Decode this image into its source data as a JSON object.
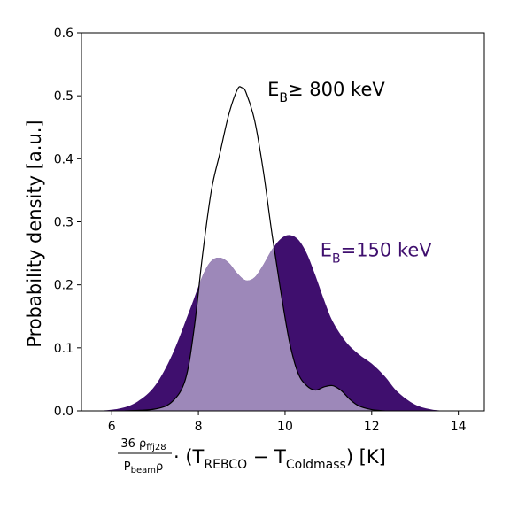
{
  "chart_data": {
    "type": "area",
    "title": "",
    "ylabel": "Probability density [a.u.]",
    "xlabel": {
      "numerator_coef": "36",
      "numerator_rho": "ρ",
      "numerator_sub": "ffj28",
      "denominator_p": "P",
      "denominator_sub": "beam",
      "denominator_rho": "ρ",
      "middle": " · (T",
      "sub_rebco": "REBCO",
      "minus": " − T",
      "sub_coldmass": "Coldmass",
      "tail": ") [K]"
    },
    "xlim": [
      5.3,
      14.6
    ],
    "ylim": [
      0.0,
      0.6
    ],
    "xticks": [
      "6",
      "8",
      "10",
      "12",
      "14"
    ],
    "xtick_values": [
      6,
      8,
      10,
      12,
      14
    ],
    "yticks": [
      "0.0",
      "0.1",
      "0.2",
      "0.3",
      "0.4",
      "0.5",
      "0.6"
    ],
    "ytick_values": [
      0.0,
      0.1,
      0.2,
      0.3,
      0.4,
      0.5,
      0.6
    ],
    "grid": false,
    "legend": "none",
    "series": [
      {
        "name": "E_B=150 keV",
        "color": "#3f0f6e",
        "x": [
          5.7,
          6.2,
          6.6,
          7.0,
          7.4,
          7.8,
          8.1,
          8.3,
          8.5,
          8.7,
          8.9,
          9.1,
          9.3,
          9.5,
          9.7,
          9.9,
          10.1,
          10.3,
          10.5,
          10.7,
          10.9,
          11.1,
          11.4,
          11.7,
          12.0,
          12.3,
          12.6,
          13.0,
          13.4,
          13.8
        ],
        "y": [
          0.0,
          0.004,
          0.015,
          0.04,
          0.09,
          0.16,
          0.215,
          0.238,
          0.243,
          0.235,
          0.218,
          0.207,
          0.212,
          0.232,
          0.256,
          0.273,
          0.279,
          0.272,
          0.25,
          0.215,
          0.176,
          0.142,
          0.11,
          0.09,
          0.075,
          0.055,
          0.03,
          0.01,
          0.002,
          0.0
        ]
      },
      {
        "name": "E_B≥ 800 keV",
        "color": "#ffffff",
        "x": [
          6.3,
          7.0,
          7.4,
          7.7,
          7.9,
          8.1,
          8.3,
          8.5,
          8.7,
          8.9,
          9.0,
          9.1,
          9.3,
          9.5,
          9.7,
          9.9,
          10.1,
          10.3,
          10.5,
          10.7,
          10.9,
          11.1,
          11.3,
          11.5,
          11.7,
          12.0,
          12.3
        ],
        "y": [
          0.0,
          0.003,
          0.015,
          0.05,
          0.13,
          0.25,
          0.35,
          0.41,
          0.47,
          0.51,
          0.513,
          0.505,
          0.46,
          0.38,
          0.28,
          0.19,
          0.11,
          0.06,
          0.04,
          0.033,
          0.038,
          0.04,
          0.032,
          0.018,
          0.008,
          0.002,
          0.0
        ]
      }
    ],
    "overlap_color": "#9d88b9",
    "annotations": [
      {
        "name": "e800",
        "text_main": "E",
        "text_sub": "B",
        "text_rest": "≥ 800 keV",
        "color": "#000000",
        "at_x": 10.95,
        "at_y": 0.5
      },
      {
        "name": "e150",
        "text_main": "E",
        "text_sub": "B",
        "text_rest": "=150 keV",
        "color": "#3f0f6e",
        "at_x": 12.1,
        "at_y": 0.245
      }
    ]
  }
}
